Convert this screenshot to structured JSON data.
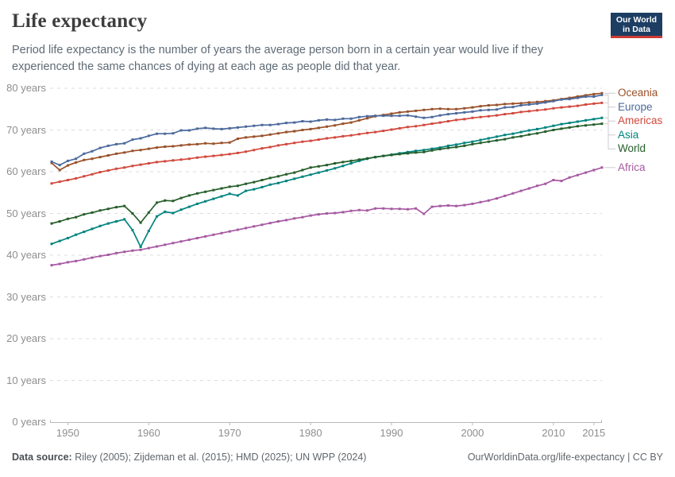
{
  "header": {
    "title": "Life expectancy",
    "subtitle": "Period life expectancy is the number of years the average person born in a certain year would live if they experienced the same chances of dying at each age as people did that year."
  },
  "logo": {
    "line1": "Our World",
    "line2": "in Data",
    "bg_color": "#1d3d63",
    "bar_color": "#cb3b33"
  },
  "footer": {
    "source_label": "Data source:",
    "source_text": " Riley (2005); Zijdeman et al. (2015); HMD (2025); UN WPP (2024)",
    "credit": "OurWorldinData.org/life-expectancy | CC BY"
  },
  "chart_data": {
    "type": "line",
    "unit": "years",
    "x": {
      "start": 1948,
      "end": 2016,
      "step": 1
    },
    "xlim": [
      1948,
      2016
    ],
    "ylim": [
      0,
      80
    ],
    "xticks": [
      1950,
      1960,
      1970,
      1980,
      1990,
      2000,
      2010,
      2015
    ],
    "yticks": [
      0,
      10,
      20,
      30,
      40,
      50,
      60,
      70,
      80
    ],
    "grid": "horizontal-dashed",
    "legend_position": "right",
    "marker": "square",
    "series": [
      {
        "name": "Oceania",
        "color": "#9A5129",
        "values": [
          62.1,
          60.4,
          61.5,
          62.2,
          62.8,
          63.1,
          63.5,
          63.9,
          64.3,
          64.6,
          65.0,
          65.2,
          65.5,
          65.8,
          66.0,
          66.1,
          66.3,
          66.5,
          66.6,
          66.8,
          66.7,
          66.9,
          67.0,
          67.9,
          68.2,
          68.4,
          68.6,
          68.9,
          69.2,
          69.5,
          69.7,
          70.0,
          70.2,
          70.5,
          70.8,
          71.1,
          71.5,
          71.8,
          72.3,
          72.8,
          73.3,
          73.6,
          73.9,
          74.2,
          74.4,
          74.6,
          74.8,
          75.0,
          75.1,
          75.0,
          75.0,
          75.2,
          75.4,
          75.7,
          75.9,
          76.0,
          76.2,
          76.3,
          76.4,
          76.6,
          76.7,
          76.9,
          77.1,
          77.4,
          77.7,
          78.0,
          78.3,
          78.6,
          78.8
        ]
      },
      {
        "name": "Europe",
        "color": "#4C6A9C",
        "values": [
          62.4,
          61.6,
          62.6,
          63.1,
          64.3,
          64.9,
          65.7,
          66.2,
          66.6,
          66.8,
          67.7,
          68.0,
          68.6,
          69.1,
          69.1,
          69.2,
          69.9,
          69.9,
          70.3,
          70.5,
          70.3,
          70.2,
          70.4,
          70.6,
          70.8,
          71.0,
          71.2,
          71.2,
          71.4,
          71.7,
          71.8,
          72.1,
          72.0,
          72.3,
          72.5,
          72.4,
          72.7,
          72.7,
          73.1,
          73.3,
          73.4,
          73.4,
          73.4,
          73.4,
          73.5,
          73.2,
          72.9,
          73.1,
          73.5,
          73.8,
          74.0,
          74.2,
          74.4,
          74.7,
          74.8,
          74.9,
          75.4,
          75.5,
          75.9,
          76.1,
          76.3,
          76.6,
          76.9,
          77.3,
          77.4,
          77.7,
          78.0,
          78.0,
          78.4
        ]
      },
      {
        "name": "Americas",
        "color": "#D2493D",
        "values": [
          57.2,
          57.6,
          58.0,
          58.4,
          58.9,
          59.4,
          59.9,
          60.3,
          60.7,
          61.0,
          61.4,
          61.7,
          62.0,
          62.3,
          62.5,
          62.7,
          62.9,
          63.1,
          63.4,
          63.6,
          63.8,
          64.0,
          64.2,
          64.5,
          64.8,
          65.2,
          65.6,
          65.9,
          66.3,
          66.6,
          66.9,
          67.2,
          67.4,
          67.7,
          68.0,
          68.2,
          68.5,
          68.7,
          69.0,
          69.3,
          69.5,
          69.8,
          70.1,
          70.4,
          70.7,
          70.9,
          71.2,
          71.5,
          71.8,
          72.1,
          72.4,
          72.6,
          72.9,
          73.1,
          73.3,
          73.5,
          73.8,
          74.0,
          74.3,
          74.5,
          74.7,
          74.9,
          75.2,
          75.4,
          75.6,
          75.8,
          76.1,
          76.3,
          76.5
        ]
      },
      {
        "name": "Asia",
        "color": "#00847E",
        "values": [
          42.7,
          43.4,
          44.1,
          44.9,
          45.6,
          46.3,
          47.0,
          47.6,
          48.1,
          48.6,
          46.0,
          42.0,
          45.8,
          49.3,
          50.4,
          50.1,
          50.9,
          51.6,
          52.3,
          52.9,
          53.5,
          54.1,
          54.7,
          54.3,
          55.4,
          55.8,
          56.3,
          56.9,
          57.3,
          57.8,
          58.3,
          58.8,
          59.3,
          59.8,
          60.3,
          60.8,
          61.4,
          62.0,
          62.6,
          63.1,
          63.5,
          63.8,
          64.1,
          64.4,
          64.7,
          65.0,
          65.2,
          65.5,
          65.8,
          66.2,
          66.5,
          66.9,
          67.2,
          67.6,
          68.0,
          68.4,
          68.8,
          69.1,
          69.5,
          69.9,
          70.2,
          70.6,
          71.0,
          71.4,
          71.7,
          72.0,
          72.3,
          72.6,
          72.9
        ]
      },
      {
        "name": "World",
        "color": "#265E2A",
        "values": [
          47.6,
          48.1,
          48.7,
          49.1,
          49.8,
          50.2,
          50.7,
          51.1,
          51.5,
          51.8,
          50.0,
          47.8,
          50.2,
          52.6,
          53.1,
          53.0,
          53.7,
          54.3,
          54.8,
          55.2,
          55.6,
          56.0,
          56.4,
          56.6,
          57.1,
          57.5,
          58.0,
          58.5,
          58.9,
          59.4,
          59.8,
          60.4,
          61.0,
          61.3,
          61.6,
          62.0,
          62.3,
          62.6,
          62.9,
          63.2,
          63.5,
          63.8,
          64.0,
          64.2,
          64.4,
          64.6,
          64.7,
          65.1,
          65.4,
          65.7,
          65.9,
          66.2,
          66.6,
          66.9,
          67.2,
          67.5,
          67.8,
          68.2,
          68.5,
          68.9,
          69.2,
          69.6,
          70.0,
          70.3,
          70.6,
          70.9,
          71.1,
          71.3,
          71.5
        ]
      },
      {
        "name": "Africa",
        "color": "#A65AA2",
        "values": [
          37.6,
          37.9,
          38.3,
          38.6,
          39.0,
          39.4,
          39.8,
          40.1,
          40.5,
          40.8,
          41.1,
          41.3,
          41.7,
          42.1,
          42.5,
          42.9,
          43.3,
          43.7,
          44.1,
          44.5,
          44.9,
          45.3,
          45.7,
          46.1,
          46.5,
          46.9,
          47.3,
          47.7,
          48.1,
          48.4,
          48.8,
          49.1,
          49.5,
          49.8,
          50.0,
          50.1,
          50.3,
          50.6,
          50.8,
          50.7,
          51.2,
          51.2,
          51.1,
          51.1,
          51.0,
          51.2,
          49.9,
          51.6,
          51.8,
          51.9,
          51.8,
          52.0,
          52.3,
          52.7,
          53.1,
          53.6,
          54.2,
          54.8,
          55.4,
          56.0,
          56.6,
          57.1,
          58.0,
          57.8,
          58.6,
          59.2,
          59.8,
          60.4,
          61.0
        ]
      }
    ]
  }
}
